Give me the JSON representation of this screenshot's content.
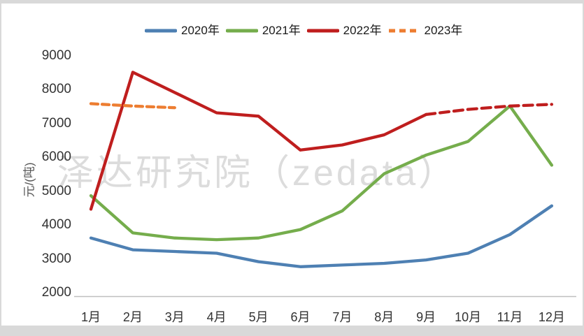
{
  "watermark_text": "泽达研究院（zedata）",
  "chart_data": {
    "type": "line",
    "title": "",
    "xlabel": "",
    "ylabel": "元/(吨)",
    "ylim": [
      2000,
      9000
    ],
    "ytick_step": 1000,
    "yticks": [
      9000,
      8000,
      7000,
      6000,
      5000,
      4000,
      3000,
      2000
    ],
    "grid": false,
    "legend_position": "top-center",
    "axis_color": "#bfbfbf",
    "tick_label_color": "#333333",
    "watermark_color": "#dcdcdc",
    "categories": [
      "1月",
      "2月",
      "3月",
      "4月",
      "5月",
      "6月",
      "7月",
      "8月",
      "9月",
      "10月",
      "11月",
      "12月"
    ],
    "series": [
      {
        "name": "2020年",
        "color": "#4e80b3",
        "style": "solid",
        "values": [
          3700,
          3350,
          3300,
          3250,
          3000,
          2850,
          2900,
          2950,
          3050,
          3250,
          3800,
          4650
        ]
      },
      {
        "name": "2021年",
        "color": "#75ad4c",
        "style": "solid",
        "values": [
          4950,
          3850,
          3700,
          3650,
          3700,
          3950,
          4500,
          5600,
          6150,
          6550,
          7600,
          5850
        ]
      },
      {
        "name": "2022年",
        "color": "#bf1e1e",
        "style": "solid-then-dashed",
        "dashed_from_index": 8,
        "values": [
          4550,
          8600,
          8000,
          7400,
          7300,
          6300,
          6450,
          6750,
          7350,
          7500,
          7600,
          7650
        ]
      },
      {
        "name": "2023年",
        "color": "#ed7d31",
        "style": "dashed",
        "values": [
          7670,
          7600,
          7550,
          null,
          null,
          null,
          null,
          null,
          null,
          null,
          null,
          null
        ]
      }
    ],
    "watermark": "泽达研究院（zedata）"
  }
}
